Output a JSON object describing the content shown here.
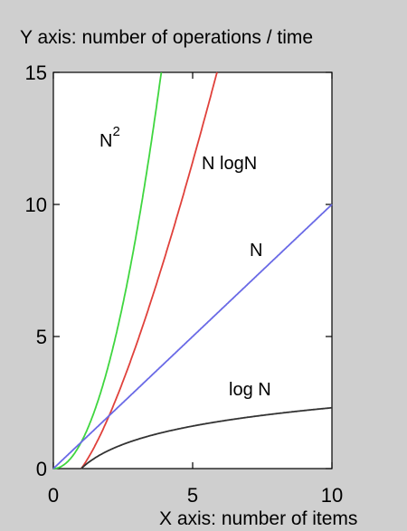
{
  "chart_data": {
    "type": "line",
    "title": "Y axis: number of operations / time",
    "xlabel": "X axis: number of items",
    "ylabel": "",
    "xlim": [
      0,
      10
    ],
    "ylim": [
      0,
      15
    ],
    "x_ticks": [
      "0",
      "5",
      "10"
    ],
    "y_ticks": [
      "0",
      "5",
      "10",
      "15"
    ],
    "grid": false,
    "legend": "none",
    "series": [
      {
        "name": "N^2",
        "label_main": "N",
        "label_sup": "2",
        "function": "square",
        "color": "#3fd63f"
      },
      {
        "name": "N logN",
        "label_main": "N logN",
        "function": "nlogn",
        "color": "#e0413b"
      },
      {
        "name": "N",
        "label_main": "N",
        "function": "linear",
        "color": "#6a6ae6"
      },
      {
        "name": "log N",
        "label_main": "log N",
        "function": "log",
        "color": "#333333"
      }
    ]
  }
}
